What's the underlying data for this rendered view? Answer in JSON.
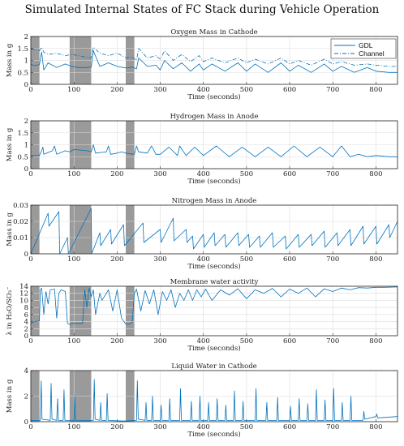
{
  "figure_title": "Simulated Internal States of FC Stack during Vehicle Operation",
  "colors": {
    "line": "#0072BD",
    "shade": "#9a9a9a",
    "grid": "#dcdcdc"
  },
  "chart_data": [
    {
      "type": "line",
      "title": "Oxygen Mass in Cathode",
      "xlabel": "Time (seconds)",
      "ylabel": "Mass in g",
      "xlim": [
        0,
        850
      ],
      "ylim": [
        0,
        2
      ],
      "xticks": [
        "0",
        "100",
        "200",
        "300",
        "400",
        "500",
        "600",
        "700",
        "800"
      ],
      "yticks": [
        "0",
        "0.5",
        "1",
        "1.5",
        "2"
      ],
      "shaded_intervals": [
        [
          0,
          20
        ],
        [
          90,
          140
        ],
        [
          220,
          240
        ]
      ],
      "legend": {
        "position": "top-right",
        "entries": [
          "GDL",
          "Channel"
        ]
      },
      "series": [
        {
          "name": "GDL",
          "style": "solid",
          "x": [
            0,
            5,
            12,
            20,
            25,
            30,
            40,
            60,
            80,
            95,
            110,
            125,
            140,
            145,
            160,
            180,
            200,
            215,
            222,
            235,
            245,
            250,
            270,
            290,
            300,
            310,
            330,
            350,
            370,
            390,
            400,
            420,
            450,
            480,
            500,
            520,
            550,
            580,
            600,
            620,
            650,
            680,
            700,
            720,
            750,
            780,
            800,
            830,
            850
          ],
          "y": [
            0.85,
            0.8,
            0.8,
            0.82,
            1.35,
            0.6,
            0.9,
            0.7,
            0.85,
            0.75,
            0.7,
            0.7,
            0.72,
            1.4,
            0.75,
            0.9,
            0.75,
            0.7,
            0.68,
            0.72,
            0.65,
            1.1,
            0.75,
            0.8,
            0.6,
            1.0,
            0.65,
            0.9,
            0.55,
            0.85,
            0.6,
            0.85,
            0.55,
            0.9,
            0.55,
            0.85,
            0.5,
            0.9,
            0.55,
            0.8,
            0.5,
            0.85,
            0.55,
            0.75,
            0.5,
            0.7,
            0.55,
            0.5,
            0.5
          ]
        },
        {
          "name": "Channel",
          "style": "dashdot",
          "x": [
            0,
            12,
            20,
            25,
            30,
            40,
            60,
            80,
            95,
            110,
            125,
            140,
            145,
            160,
            180,
            200,
            222,
            235,
            245,
            250,
            270,
            290,
            300,
            310,
            330,
            350,
            370,
            390,
            400,
            420,
            450,
            480,
            500,
            520,
            550,
            580,
            600,
            620,
            650,
            680,
            700,
            720,
            750,
            780,
            800,
            830,
            850
          ],
          "y": [
            1.48,
            1.45,
            1.4,
            1.55,
            1.35,
            1.25,
            1.3,
            1.2,
            1.25,
            1.2,
            1.15,
            1.1,
            1.55,
            1.3,
            1.2,
            1.3,
            1.1,
            1.15,
            1.0,
            1.5,
            1.1,
            1.2,
            1.05,
            1.4,
            1.0,
            1.25,
            0.95,
            1.2,
            0.95,
            1.1,
            0.9,
            1.1,
            0.9,
            1.05,
            0.85,
            1.1,
            0.85,
            1.0,
            0.8,
            1.05,
            0.85,
            0.95,
            0.8,
            0.85,
            0.8,
            0.75,
            0.75
          ]
        }
      ]
    },
    {
      "type": "line",
      "title": "Hydrogen Mass in Anode",
      "xlabel": "Time (seconds)",
      "ylabel": "Mass in g",
      "xlim": [
        0,
        850
      ],
      "ylim": [
        0,
        2
      ],
      "xticks": [
        "0",
        "100",
        "200",
        "300",
        "400",
        "500",
        "600",
        "700",
        "800"
      ],
      "yticks": [
        "0",
        "0.5",
        "1",
        "1.5",
        "2"
      ],
      "shaded_intervals": [
        [
          0,
          20
        ],
        [
          90,
          140
        ],
        [
          220,
          240
        ]
      ],
      "series": [
        {
          "name": "",
          "x": [
            0,
            10,
            20,
            25,
            28,
            30,
            50,
            55,
            60,
            80,
            90,
            100,
            130,
            140,
            145,
            150,
            175,
            180,
            185,
            200,
            210,
            220,
            240,
            245,
            250,
            270,
            280,
            290,
            300,
            320,
            340,
            345,
            360,
            380,
            400,
            430,
            460,
            490,
            520,
            550,
            580,
            610,
            640,
            670,
            700,
            720,
            740,
            760,
            780,
            800,
            830,
            850
          ],
          "y": [
            0.55,
            0.55,
            0.55,
            0.75,
            0.9,
            0.6,
            0.75,
            0.95,
            0.6,
            0.75,
            0.7,
            0.8,
            0.75,
            0.7,
            1.0,
            0.65,
            0.7,
            0.95,
            0.6,
            0.65,
            0.7,
            0.65,
            0.6,
            0.95,
            0.7,
            0.65,
            0.95,
            0.6,
            0.6,
            0.9,
            0.55,
            0.95,
            0.55,
            0.9,
            0.55,
            0.95,
            0.5,
            0.9,
            0.5,
            0.9,
            0.5,
            0.95,
            0.5,
            0.9,
            0.5,
            0.95,
            0.5,
            0.6,
            0.5,
            0.55,
            0.5,
            0.5
          ]
        }
      ]
    },
    {
      "type": "line",
      "title": "Nitrogen Mass in Anode",
      "xlabel": "Time (seconds)",
      "ylabel": "Mass in g",
      "xlim": [
        0,
        850
      ],
      "ylim": [
        0,
        0.03
      ],
      "xticks": [
        "0",
        "100",
        "200",
        "300",
        "400",
        "500",
        "600",
        "700",
        "800"
      ],
      "yticks": [
        "0",
        "0.01",
        "0.02",
        "0.03"
      ],
      "shaded_intervals": [
        [
          0,
          20
        ],
        [
          90,
          140
        ],
        [
          220,
          240
        ]
      ],
      "series": [
        {
          "name": "",
          "x": [
            0,
            40,
            42,
            65,
            67,
            85,
            87,
            140,
            141,
            160,
            162,
            185,
            187,
            215,
            217,
            260,
            262,
            300,
            302,
            330,
            332,
            360,
            362,
            375,
            377,
            400,
            402,
            425,
            427,
            450,
            452,
            480,
            482,
            505,
            507,
            530,
            532,
            560,
            562,
            590,
            592,
            620,
            622,
            650,
            652,
            680,
            682,
            710,
            712,
            740,
            742,
            770,
            772,
            800,
            802,
            830,
            832,
            850
          ],
          "y": [
            0,
            0.025,
            0.017,
            0.026,
            0.0,
            0.01,
            0.0,
            0.028,
            0.0,
            0.013,
            0.005,
            0.015,
            0.006,
            0.018,
            0.005,
            0.019,
            0.007,
            0.015,
            0.007,
            0.022,
            0.008,
            0.015,
            0.007,
            0.011,
            0.003,
            0.012,
            0.004,
            0.013,
            0.005,
            0.012,
            0.004,
            0.013,
            0.005,
            0.012,
            0.004,
            0.011,
            0.004,
            0.013,
            0.004,
            0.011,
            0.003,
            0.012,
            0.004,
            0.012,
            0.005,
            0.014,
            0.004,
            0.013,
            0.005,
            0.015,
            0.005,
            0.017,
            0.006,
            0.017,
            0.006,
            0.018,
            0.01,
            0.02
          ]
        }
      ]
    },
    {
      "type": "line",
      "title": "Membrane water activity",
      "xlabel": "Time (seconds)",
      "ylabel": "λ in H₂O/SO₃⁻",
      "xlim": [
        0,
        850
      ],
      "ylim": [
        0,
        14
      ],
      "xticks": [
        "0",
        "100",
        "200",
        "300",
        "400",
        "500",
        "600",
        "700",
        "800"
      ],
      "yticks": [
        "0",
        "2",
        "4",
        "6",
        "8",
        "10",
        "12",
        "14"
      ],
      "shaded_intervals": [
        [
          0,
          20
        ],
        [
          90,
          140
        ],
        [
          220,
          240
        ]
      ],
      "series": [
        {
          "name": "",
          "x": [
            0,
            5,
            10,
            20,
            22,
            25,
            30,
            35,
            40,
            45,
            55,
            60,
            65,
            70,
            80,
            85,
            90,
            95,
            120,
            125,
            130,
            135,
            140,
            145,
            150,
            160,
            165,
            180,
            190,
            200,
            210,
            220,
            225,
            230,
            235,
            240,
            245,
            255,
            265,
            275,
            285,
            295,
            305,
            315,
            325,
            335,
            345,
            355,
            365,
            375,
            385,
            395,
            405,
            420,
            440,
            460,
            480,
            500,
            520,
            540,
            560,
            580,
            600,
            620,
            640,
            660,
            680,
            700,
            720,
            740,
            760,
            780,
            800,
            820,
            850
          ],
          "y": [
            3.5,
            3.8,
            4.0,
            4.2,
            13,
            13.5,
            6,
            12.5,
            9,
            13,
            13.2,
            5,
            12,
            13,
            12.5,
            3.5,
            3.2,
            3.5,
            3.5,
            13,
            8,
            13.5,
            11,
            13,
            6,
            12,
            10,
            13,
            7,
            13,
            5,
            3.3,
            3.2,
            3.4,
            3.8,
            12,
            13.2,
            7,
            12.8,
            9,
            13,
            6,
            12.5,
            10,
            13,
            8,
            12,
            10,
            13,
            10,
            13,
            11,
            13.2,
            10,
            13,
            11.5,
            13.3,
            10.5,
            13,
            12,
            13.4,
            11,
            13.2,
            12,
            13.5,
            11,
            13.3,
            12.5,
            13.5,
            13,
            13.6,
            13.5,
            13.7,
            13.7,
            13.8
          ]
        }
      ]
    },
    {
      "type": "line",
      "title": "Liquid Water in Cathode",
      "xlabel": "Time (seconds)",
      "ylabel": "Mass in g",
      "xlim": [
        0,
        850
      ],
      "ylim": [
        0,
        4
      ],
      "xticks": [
        "0",
        "100",
        "200",
        "300",
        "400",
        "500",
        "600",
        "700",
        "800"
      ],
      "yticks": [
        "0",
        "2",
        "4"
      ],
      "shaded_intervals": [
        [
          0,
          20
        ],
        [
          90,
          140
        ],
        [
          220,
          240
        ]
      ],
      "series": [
        {
          "name": "",
          "x": [
            0,
            22,
            24,
            26,
            45,
            47,
            49,
            60,
            62,
            64,
            75,
            77,
            79,
            100,
            102,
            104,
            145,
            147,
            149,
            160,
            162,
            164,
            175,
            177,
            179,
            215,
            245,
            247,
            249,
            265,
            267,
            269,
            280,
            282,
            284,
            300,
            302,
            304,
            320,
            322,
            324,
            345,
            347,
            349,
            370,
            372,
            374,
            390,
            392,
            394,
            410,
            412,
            414,
            430,
            432,
            434,
            450,
            452,
            454,
            470,
            472,
            474,
            490,
            492,
            494,
            520,
            522,
            524,
            545,
            547,
            549,
            570,
            572,
            574,
            600,
            602,
            604,
            620,
            622,
            624,
            640,
            642,
            644,
            660,
            662,
            664,
            680,
            682,
            684,
            700,
            702,
            704,
            720,
            722,
            724,
            740,
            742,
            744,
            770,
            772,
            774,
            800,
            802,
            804,
            850
          ],
          "y": [
            0.1,
            0.1,
            3.2,
            0.2,
            0.1,
            3.0,
            0.2,
            0.1,
            1.8,
            0.1,
            0.1,
            2.5,
            0.1,
            0.1,
            2.0,
            0.1,
            0.1,
            3.3,
            0.2,
            0.1,
            1.5,
            0.1,
            0.1,
            2.2,
            0.1,
            0.05,
            0.1,
            3.2,
            0.2,
            0.1,
            1.5,
            0.1,
            0.1,
            2.0,
            0.1,
            0.1,
            1.3,
            0.1,
            0.1,
            1.8,
            0.1,
            0.1,
            2.6,
            0.1,
            0.1,
            1.6,
            0.1,
            0.1,
            2.0,
            0.1,
            0.1,
            1.5,
            0.1,
            0.1,
            1.8,
            0.1,
            0.1,
            1.3,
            0.1,
            0.1,
            2.4,
            0.1,
            0.1,
            1.6,
            0.1,
            0.1,
            2.6,
            0.1,
            0.1,
            1.5,
            0.1,
            0.1,
            1.9,
            0.1,
            0.1,
            1.2,
            0.1,
            0.1,
            1.8,
            0.1,
            0.1,
            1.4,
            0.1,
            0.1,
            2.5,
            0.1,
            0.1,
            1.7,
            0.1,
            0.1,
            2.6,
            0.1,
            0.1,
            1.5,
            0.1,
            0.1,
            2.0,
            0.1,
            0.1,
            0.8,
            0.2,
            0.4,
            0.6,
            0.3,
            0.4
          ]
        }
      ]
    }
  ]
}
